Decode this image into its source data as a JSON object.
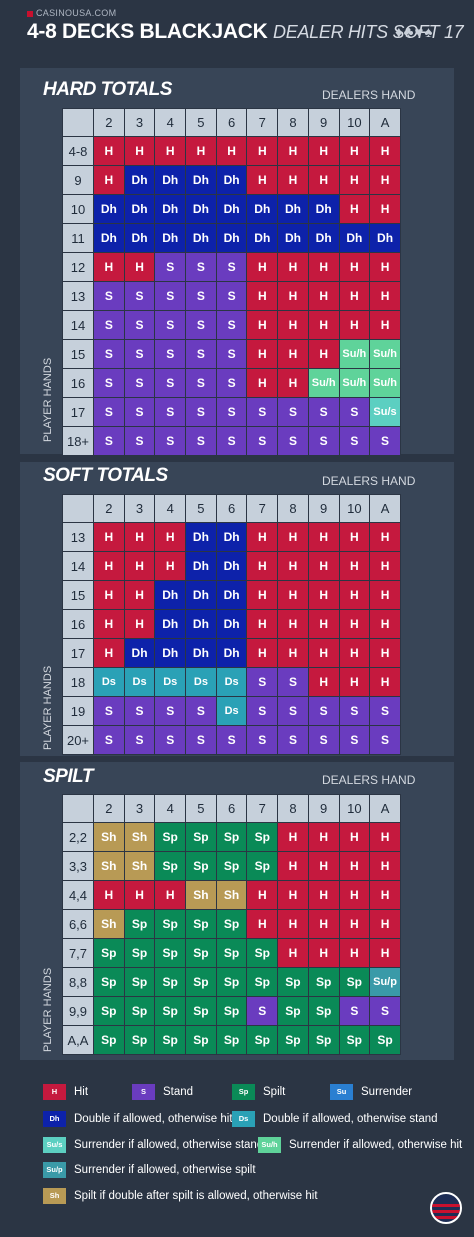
{
  "brand": "CASINOUSA.COM",
  "title": {
    "main": "4-8 DECKS BLACKJACK",
    "sub": "DEALER HITS SOFT 17",
    "suits": "♦♣♥♠"
  },
  "dealer_label": "DEALERS HAND",
  "player_label": "PLAYER HANDS",
  "dealer_cards": [
    "2",
    "3",
    "4",
    "5",
    "6",
    "7",
    "8",
    "9",
    "10",
    "A"
  ],
  "hard_totals": {
    "title": "HARD TOTALS",
    "rows": [
      {
        "label": "4-8",
        "cells": [
          "H",
          "H",
          "H",
          "H",
          "H",
          "H",
          "H",
          "H",
          "H",
          "H"
        ]
      },
      {
        "label": "9",
        "cells": [
          "H",
          "Dh",
          "Dh",
          "Dh",
          "Dh",
          "H",
          "H",
          "H",
          "H",
          "H"
        ]
      },
      {
        "label": "10",
        "cells": [
          "Dh",
          "Dh",
          "Dh",
          "Dh",
          "Dh",
          "Dh",
          "Dh",
          "Dh",
          "H",
          "H"
        ]
      },
      {
        "label": "11",
        "cells": [
          "Dh",
          "Dh",
          "Dh",
          "Dh",
          "Dh",
          "Dh",
          "Dh",
          "Dh",
          "Dh",
          "Dh"
        ]
      },
      {
        "label": "12",
        "cells": [
          "H",
          "H",
          "S",
          "S",
          "S",
          "H",
          "H",
          "H",
          "H",
          "H"
        ]
      },
      {
        "label": "13",
        "cells": [
          "S",
          "S",
          "S",
          "S",
          "S",
          "H",
          "H",
          "H",
          "H",
          "H"
        ]
      },
      {
        "label": "14",
        "cells": [
          "S",
          "S",
          "S",
          "S",
          "S",
          "H",
          "H",
          "H",
          "H",
          "H"
        ]
      },
      {
        "label": "15",
        "cells": [
          "S",
          "S",
          "S",
          "S",
          "S",
          "H",
          "H",
          "H",
          "Su/h",
          "Su/h"
        ]
      },
      {
        "label": "16",
        "cells": [
          "S",
          "S",
          "S",
          "S",
          "S",
          "H",
          "H",
          "Su/h",
          "Su/h",
          "Su/h"
        ]
      },
      {
        "label": "17",
        "cells": [
          "S",
          "S",
          "S",
          "S",
          "S",
          "S",
          "S",
          "S",
          "S",
          "Su/s"
        ]
      },
      {
        "label": "18+",
        "cells": [
          "S",
          "S",
          "S",
          "S",
          "S",
          "S",
          "S",
          "S",
          "S",
          "S"
        ]
      }
    ]
  },
  "soft_totals": {
    "title": "SOFT TOTALS",
    "rows": [
      {
        "label": "13",
        "cells": [
          "H",
          "H",
          "H",
          "Dh",
          "Dh",
          "H",
          "H",
          "H",
          "H",
          "H"
        ]
      },
      {
        "label": "14",
        "cells": [
          "H",
          "H",
          "H",
          "Dh",
          "Dh",
          "H",
          "H",
          "H",
          "H",
          "H"
        ]
      },
      {
        "label": "15",
        "cells": [
          "H",
          "H",
          "Dh",
          "Dh",
          "Dh",
          "H",
          "H",
          "H",
          "H",
          "H"
        ]
      },
      {
        "label": "16",
        "cells": [
          "H",
          "H",
          "Dh",
          "Dh",
          "Dh",
          "H",
          "H",
          "H",
          "H",
          "H"
        ]
      },
      {
        "label": "17",
        "cells": [
          "H",
          "Dh",
          "Dh",
          "Dh",
          "Dh",
          "H",
          "H",
          "H",
          "H",
          "H"
        ]
      },
      {
        "label": "18",
        "cells": [
          "Ds",
          "Ds",
          "Ds",
          "Ds",
          "Ds",
          "S",
          "S",
          "H",
          "H",
          "H"
        ]
      },
      {
        "label": "19",
        "cells": [
          "S",
          "S",
          "S",
          "S",
          "Ds",
          "S",
          "S",
          "S",
          "S",
          "S"
        ]
      },
      {
        "label": "20+",
        "cells": [
          "S",
          "S",
          "S",
          "S",
          "S",
          "S",
          "S",
          "S",
          "S",
          "S"
        ]
      }
    ]
  },
  "split": {
    "title": "SPILT",
    "rows": [
      {
        "label": "2,2",
        "cells": [
          "Sh",
          "Sh",
          "Sp",
          "Sp",
          "Sp",
          "Sp",
          "H",
          "H",
          "H",
          "H"
        ]
      },
      {
        "label": "3,3",
        "cells": [
          "Sh",
          "Sh",
          "Sp",
          "Sp",
          "Sp",
          "Sp",
          "H",
          "H",
          "H",
          "H"
        ]
      },
      {
        "label": "4,4",
        "cells": [
          "H",
          "H",
          "H",
          "Sh",
          "Sh",
          "H",
          "H",
          "H",
          "H",
          "H"
        ]
      },
      {
        "label": "6,6",
        "cells": [
          "Sh",
          "Sp",
          "Sp",
          "Sp",
          "Sp",
          "H",
          "H",
          "H",
          "H",
          "H"
        ]
      },
      {
        "label": "7,7",
        "cells": [
          "Sp",
          "Sp",
          "Sp",
          "Sp",
          "Sp",
          "Sp",
          "H",
          "H",
          "H",
          "H"
        ]
      },
      {
        "label": "8,8",
        "cells": [
          "Sp",
          "Sp",
          "Sp",
          "Sp",
          "Sp",
          "Sp",
          "Sp",
          "Sp",
          "Sp",
          "Su/p"
        ]
      },
      {
        "label": "9,9",
        "cells": [
          "Sp",
          "Sp",
          "Sp",
          "Sp",
          "Sp",
          "S",
          "Sp",
          "Sp",
          "S",
          "S"
        ]
      },
      {
        "label": "A,A",
        "cells": [
          "Sp",
          "Sp",
          "Sp",
          "Sp",
          "Sp",
          "Sp",
          "Sp",
          "Sp",
          "Sp",
          "Sp"
        ]
      }
    ]
  },
  "legend": [
    {
      "code": "H",
      "text": "Hit"
    },
    {
      "code": "S",
      "text": "Stand"
    },
    {
      "code": "Sp",
      "text": "Spilt"
    },
    {
      "code": "Su",
      "text": "Surrender"
    },
    {
      "code": "Dh",
      "text": "Double if allowed, otherwise hit"
    },
    {
      "code": "Ds",
      "text": "Double if allowed, otherwise stand"
    },
    {
      "code": "Su/s",
      "text": "Surrender if allowed, otherwise stand"
    },
    {
      "code": "Su/h",
      "text": "Surrender if allowed, otherwise hit"
    },
    {
      "code": "Su/p",
      "text": "Surrender if allowed, otherwise spilt"
    },
    {
      "code": "Sh",
      "text": "Spilt if double after spilt is allowed, otherwise hit"
    }
  ],
  "colors": {
    "H": "#c5193e",
    "S": "#6a3cbf",
    "Dh": "#0d22aa",
    "Ds": "#2aa1b6",
    "Sp": "#0a8a57",
    "Sh": "#b89a55",
    "Su/h": "#5fd39a",
    "Su/s": "#5ccfc1",
    "Su/p": "#3a9aa8",
    "Su": "#2a7fd1",
    "background": "#2b3544",
    "panel": "#384557",
    "header": "#c6d0db"
  }
}
